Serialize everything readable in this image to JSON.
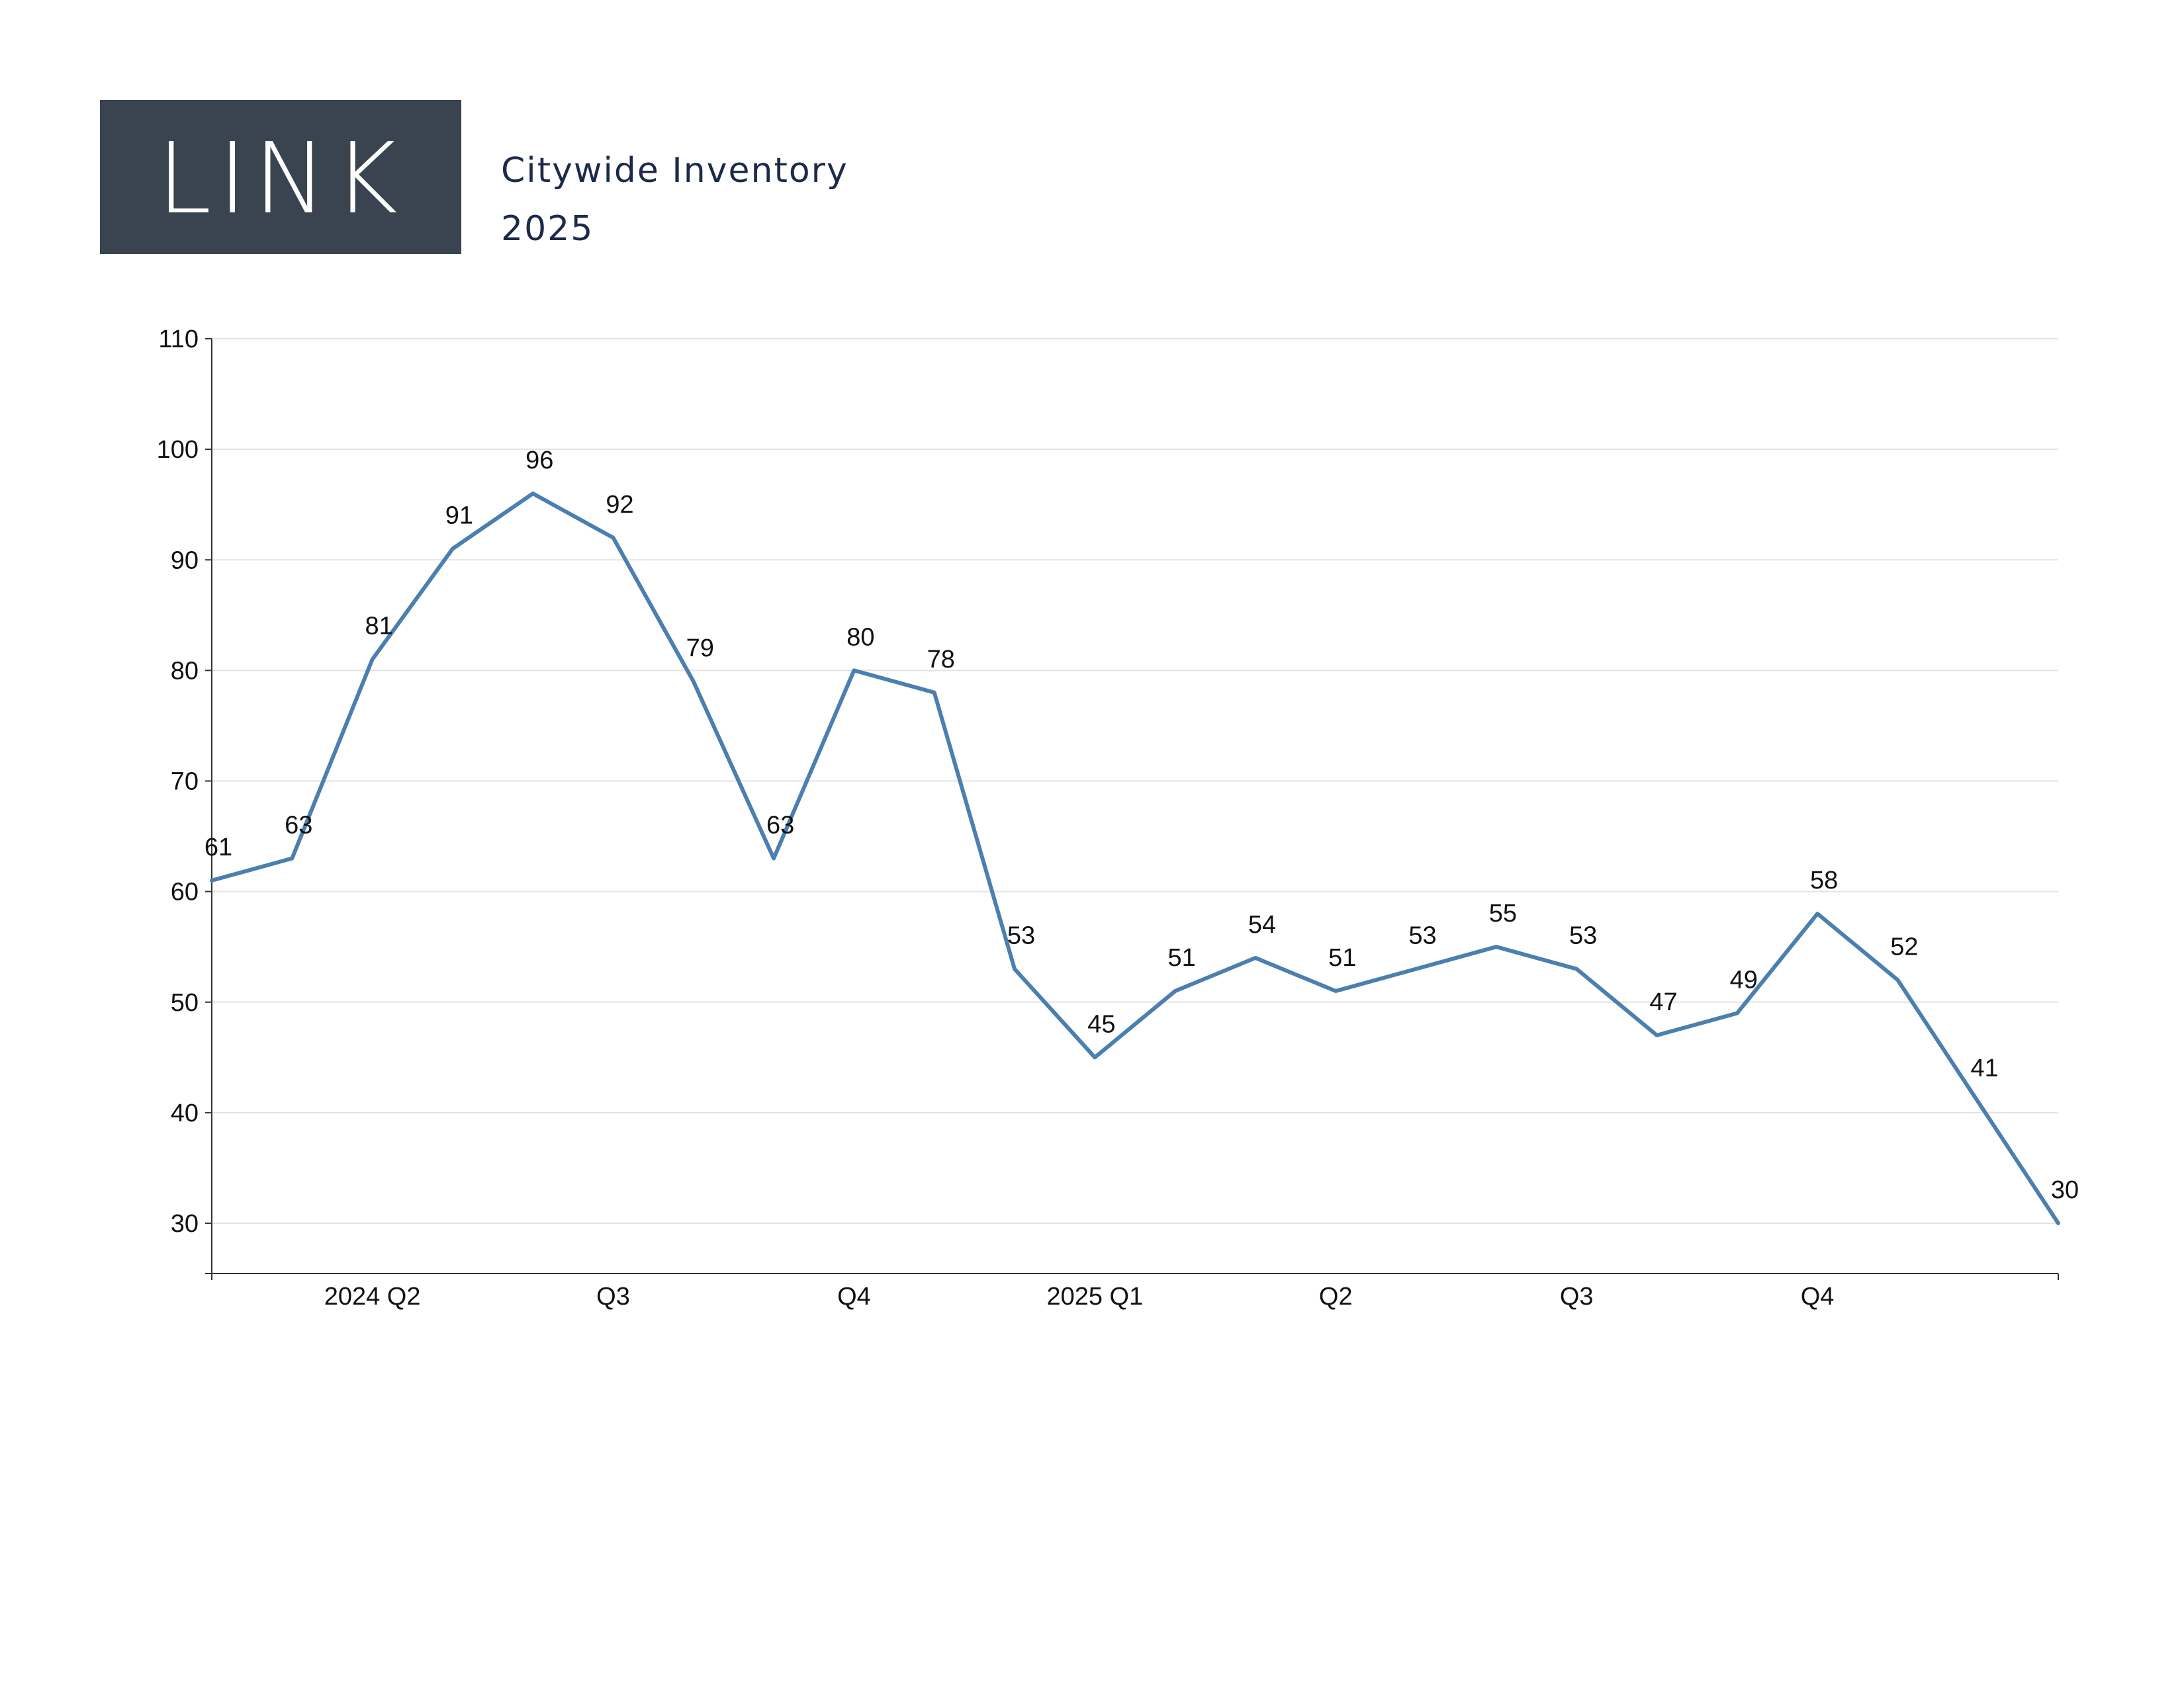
{
  "header": {
    "logo_text": "LINK",
    "title": "Citywide Inventory",
    "year": "2025"
  },
  "colors": {
    "logo_bg": "#3a4450",
    "header_text": "#1c2a4a",
    "line": "#4a7fb0",
    "grid": "#e3e3e3",
    "axis": "#333333"
  },
  "chart_data": {
    "type": "line",
    "title": "",
    "xlabel": "",
    "ylabel": "",
    "ylim": [
      25.5,
      110
    ],
    "yticks": [
      30,
      40,
      50,
      60,
      70,
      80,
      90,
      100,
      110
    ],
    "grid": true,
    "legend": "none",
    "x_tick_labels": [
      "2024 Q2",
      "Q3",
      "Q4",
      "2025 Q1",
      "Q2",
      "Q3",
      "Q4"
    ],
    "series": [
      {
        "values": [
          61,
          63,
          81,
          91,
          96,
          92,
          79,
          63,
          80,
          78,
          53,
          45,
          51,
          54,
          51,
          53,
          55,
          53,
          47,
          49,
          58,
          52,
          41,
          30
        ]
      }
    ]
  }
}
